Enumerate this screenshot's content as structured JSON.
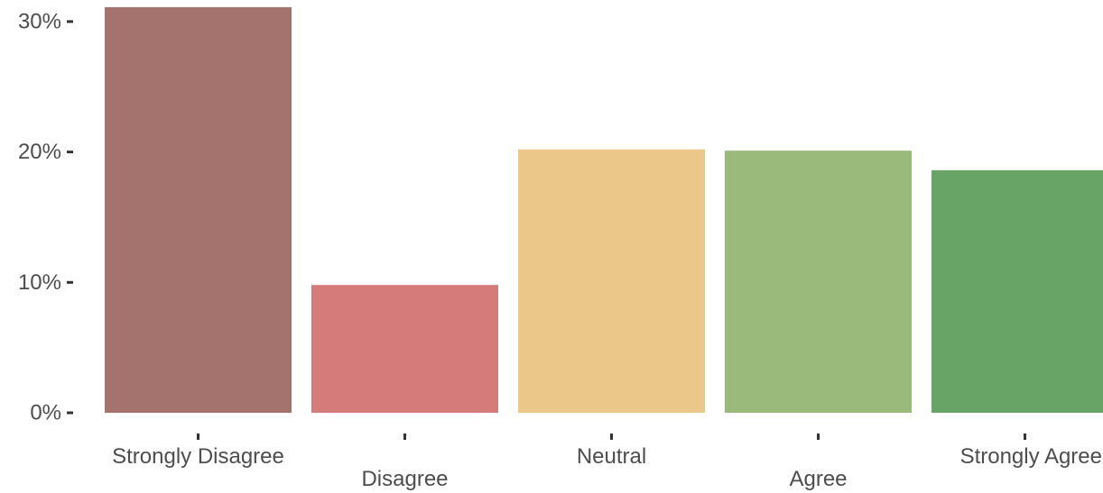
{
  "chart_data": {
    "type": "bar",
    "title": "",
    "xlabel": "",
    "ylabel": "",
    "categories": [
      "Strongly Disagree",
      "Disagree",
      "Neutral",
      "Agree",
      "Strongly Agree"
    ],
    "values": [
      31.1,
      9.8,
      20.2,
      20.1,
      18.6
    ],
    "value_unit": "%",
    "colors": [
      "#a5736e",
      "#d57b7a",
      "#ebc88a",
      "#99ba7a",
      "#67a465"
    ],
    "ylim": [
      0,
      31.1
    ],
    "yticks": [
      0,
      10,
      20,
      30
    ],
    "ytick_labels": [
      "0%",
      "10%",
      "20%",
      "30%"
    ],
    "grid": false,
    "legend": "none"
  }
}
